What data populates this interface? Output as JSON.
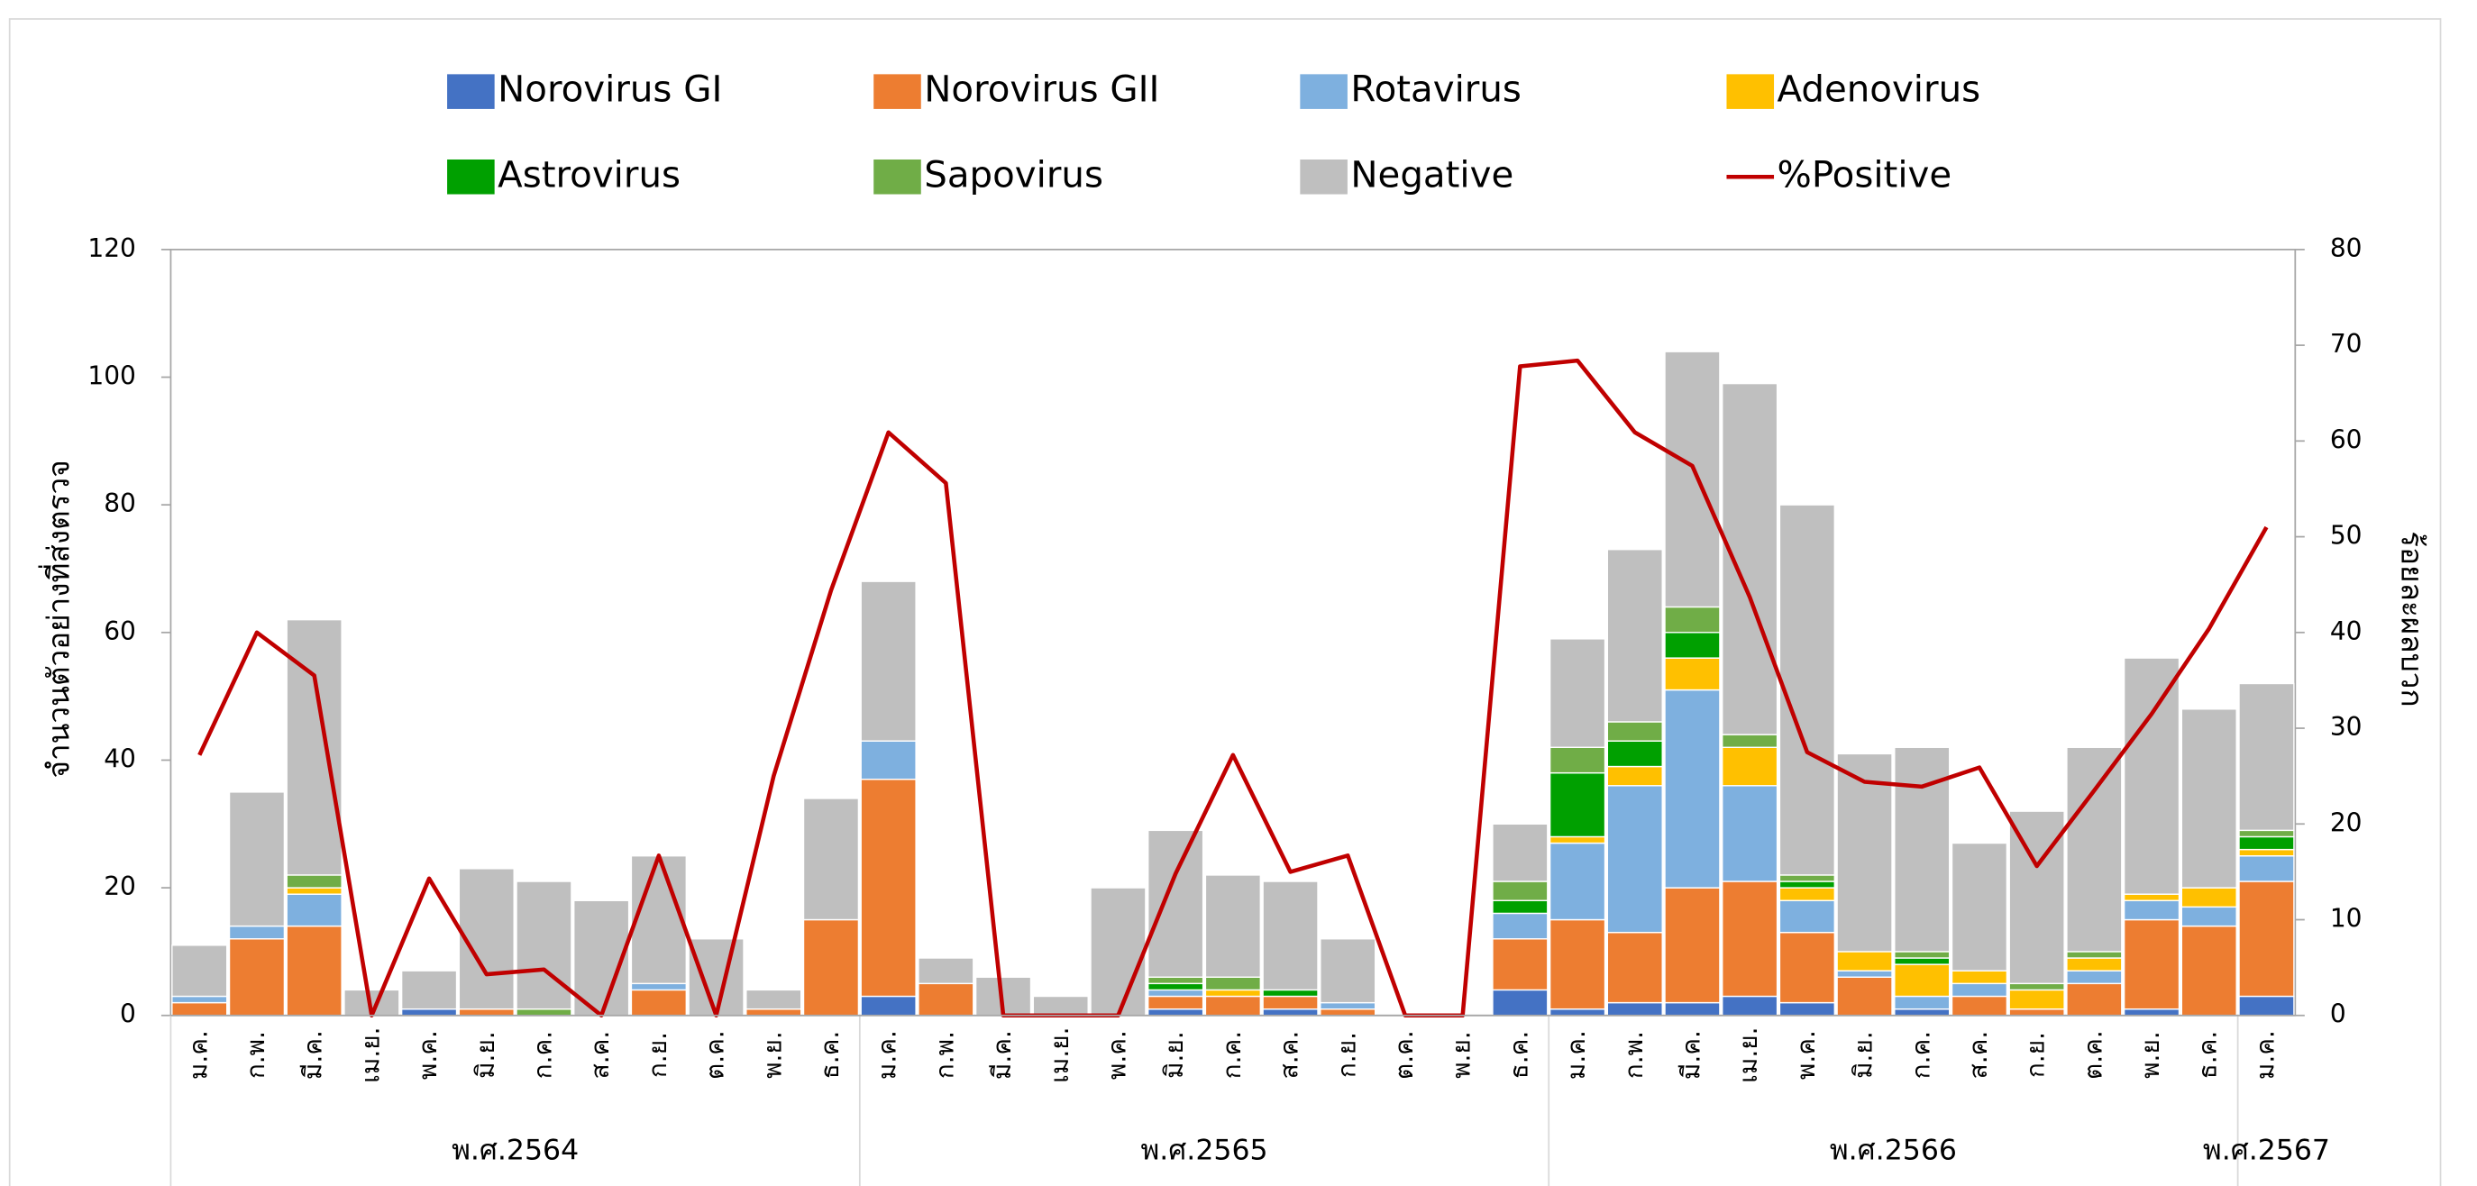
{
  "chart_data": {
    "type": "bar",
    "stacked": true,
    "legend": "top",
    "categories": [
      "ม.ค.",
      "ก.พ.",
      "มี.ค.",
      "เม.ย.",
      "พ.ค.",
      "มิ.ย.",
      "ก.ค.",
      "ส.ค.",
      "ก.ย.",
      "ต.ค.",
      "พ.ย.",
      "ธ.ค.",
      "ม.ค.",
      "ก.พ.",
      "มี.ค.",
      "เม.ย.",
      "พ.ค.",
      "มิ.ย.",
      "ก.ค.",
      "ส.ค.",
      "ก.ย.",
      "ต.ค.",
      "พ.ย.",
      "ธ.ค.",
      "ม.ค.",
      "ก.พ.",
      "มี.ค.",
      "เม.ย.",
      "พ.ค.",
      "มิ.ย.",
      "ก.ค.",
      "ส.ค.",
      "ก.ย.",
      "ต.ค.",
      "พ.ย.",
      "ธ.ค.",
      "ม.ค."
    ],
    "groups": [
      {
        "name": "พ.ศ.2564",
        "size": 12
      },
      {
        "name": "พ.ศ.2565",
        "size": 12
      },
      {
        "name": "พ.ศ.2566",
        "size": 12
      },
      {
        "name": "พ.ศ.2567",
        "size": 1
      }
    ],
    "y_label": "จำนวนตัวอย่างที่ส่งตรวจ",
    "y2_label": "ร้อยละผลบวก",
    "ylim": [
      0,
      120
    ],
    "yticks": [
      0,
      20,
      40,
      60,
      80,
      100,
      120
    ],
    "y2lim": [
      0,
      80
    ],
    "y2ticks": [
      0,
      10,
      20,
      30,
      40,
      50,
      60,
      70,
      80
    ],
    "series": [
      {
        "name": "Norovirus GI",
        "type": "bar",
        "color": "#4472c4",
        "values": [
          0,
          0,
          0,
          0,
          1,
          0,
          0,
          0,
          0,
          0,
          0,
          0,
          3,
          0,
          0,
          0,
          0,
          1,
          0,
          1,
          0,
          0,
          0,
          4,
          1,
          2,
          2,
          3,
          2,
          0,
          1,
          0,
          0,
          0,
          1,
          0,
          3
        ]
      },
      {
        "name": "Norovirus GII",
        "type": "bar",
        "color": "#ed7d31",
        "values": [
          2,
          12,
          14,
          0,
          0,
          1,
          0,
          0,
          4,
          0,
          1,
          15,
          34,
          5,
          0,
          0,
          0,
          2,
          3,
          2,
          1,
          0,
          0,
          8,
          14,
          11,
          18,
          18,
          11,
          6,
          0,
          3,
          1,
          5,
          14,
          14,
          18
        ]
      },
      {
        "name": "Rotavirus",
        "type": "bar",
        "color": "#7eb0df",
        "values": [
          1,
          2,
          5,
          0,
          0,
          0,
          0,
          0,
          1,
          0,
          0,
          0,
          6,
          0,
          0,
          0,
          0,
          1,
          0,
          0,
          1,
          0,
          0,
          4,
          12,
          23,
          31,
          15,
          5,
          1,
          2,
          2,
          0,
          2,
          3,
          3,
          4
        ]
      },
      {
        "name": "Adenovirus",
        "type": "bar",
        "color": "#ffc000",
        "values": [
          0,
          0,
          1,
          0,
          0,
          0,
          0,
          0,
          0,
          0,
          0,
          0,
          0,
          0,
          0,
          0,
          0,
          0,
          1,
          0,
          0,
          0,
          0,
          0,
          1,
          3,
          5,
          6,
          2,
          3,
          5,
          2,
          3,
          2,
          1,
          3,
          1
        ]
      },
      {
        "name": "Astrovirus",
        "type": "bar",
        "color": "#00a000",
        "values": [
          0,
          0,
          0,
          0,
          0,
          0,
          0,
          0,
          0,
          0,
          0,
          0,
          0,
          0,
          0,
          0,
          0,
          1,
          0,
          1,
          0,
          0,
          0,
          2,
          10,
          4,
          4,
          0,
          1,
          0,
          1,
          0,
          0,
          0,
          0,
          0,
          2
        ]
      },
      {
        "name": "Sapovirus",
        "type": "bar",
        "color": "#70ad47",
        "values": [
          0,
          0,
          2,
          0,
          0,
          0,
          1,
          0,
          0,
          0,
          0,
          0,
          0,
          0,
          0,
          0,
          0,
          1,
          2,
          0,
          0,
          0,
          0,
          3,
          4,
          3,
          4,
          2,
          1,
          0,
          1,
          0,
          1,
          1,
          0,
          0,
          1
        ]
      },
      {
        "name": "Negative",
        "type": "bar",
        "color": "#bfbfbf",
        "values": [
          8,
          21,
          40,
          4,
          6,
          22,
          20,
          18,
          20,
          12,
          3,
          19,
          25,
          4,
          6,
          3,
          20,
          23,
          16,
          17,
          10,
          0,
          0,
          9,
          17,
          27,
          40,
          55,
          58,
          31,
          32,
          20,
          27,
          32,
          37,
          28,
          23
        ]
      },
      {
        "name": "%Positive",
        "type": "line",
        "axis": "y2",
        "color": "#c00000",
        "values": [
          27.2,
          40,
          35.5,
          0,
          14.3,
          4.3,
          4.8,
          0,
          16.7,
          0,
          25,
          44.4,
          60.9,
          55.6,
          0,
          0,
          0,
          14.8,
          27.2,
          15,
          16.7,
          0,
          0,
          67.8,
          68.4,
          60.9,
          57.4,
          43.7,
          27.5,
          24.4,
          23.9,
          25.9,
          15.6,
          23.5,
          31.5,
          40.4,
          51
        ]
      }
    ]
  }
}
